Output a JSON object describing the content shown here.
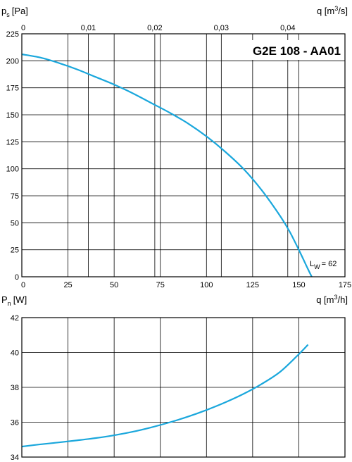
{
  "chart_data": [
    {
      "type": "line",
      "title": "G2E 108 - AA01",
      "ylabel_main": "p",
      "ylabel_sub": "s",
      "ylabel_unit": "[Pa]",
      "xlabel_top_prefix": "q [m",
      "xlabel_top_sup": "3",
      "xlabel_top_suffix": "/s]",
      "xlabel_bottom_prefix": "q [m",
      "xlabel_bottom_sup": "3",
      "xlabel_bottom_suffix": "/h]",
      "xlim": [
        0,
        175
      ],
      "ylim": [
        0,
        225
      ],
      "xlim_top": [
        0,
        0.0486
      ],
      "x_ticks": [
        "0",
        "25",
        "50",
        "75",
        "100",
        "125",
        "150",
        "175"
      ],
      "x_tick_values": [
        0,
        25,
        50,
        75,
        100,
        125,
        150,
        175
      ],
      "x_top_ticks": [
        "0",
        "0,01",
        "0,02",
        "0,03",
        "0,04"
      ],
      "x_top_tick_values": [
        0,
        0.01,
        0.02,
        0.03,
        0.04
      ],
      "y_ticks": [
        "0",
        "25",
        "50",
        "75",
        "100",
        "125",
        "150",
        "175",
        "200",
        "225"
      ],
      "y_tick_values": [
        0,
        25,
        50,
        75,
        100,
        125,
        150,
        175,
        200,
        225
      ],
      "grid": true,
      "annotation_main": "L",
      "annotation_sub": "W",
      "annotation_value": "= 62",
      "series": [
        {
          "color": "#1aa7dc",
          "x": [
            0,
            10,
            20,
            30,
            40,
            50,
            60,
            70,
            80,
            90,
            100,
            110,
            120,
            130,
            140,
            145,
            150,
            155,
            157
          ],
          "y": [
            206,
            203,
            198,
            192,
            185,
            178,
            170,
            161,
            152,
            142,
            130,
            116,
            100,
            80,
            56,
            42,
            25,
            7,
            0
          ]
        }
      ]
    },
    {
      "type": "line",
      "ylabel_main": "P",
      "ylabel_sub": "n",
      "ylabel_unit": "[W]",
      "xlim": [
        0,
        175
      ],
      "ylim": [
        34,
        42
      ],
      "x_tick_values": [
        0,
        25,
        50,
        75,
        100,
        125,
        150,
        175
      ],
      "y_ticks": [
        "34",
        "36",
        "38",
        "40",
        "42"
      ],
      "y_tick_values": [
        34,
        36,
        38,
        40,
        42
      ],
      "grid": true,
      "series": [
        {
          "color": "#1aa7dc",
          "x": [
            0,
            10,
            20,
            30,
            40,
            50,
            60,
            70,
            80,
            90,
            100,
            110,
            120,
            130,
            140,
            150,
            155
          ],
          "y": [
            34.6,
            34.73,
            34.84,
            34.96,
            35.09,
            35.25,
            35.45,
            35.7,
            35.99,
            36.32,
            36.7,
            37.13,
            37.62,
            38.2,
            38.9,
            39.9,
            40.45
          ]
        }
      ]
    }
  ]
}
